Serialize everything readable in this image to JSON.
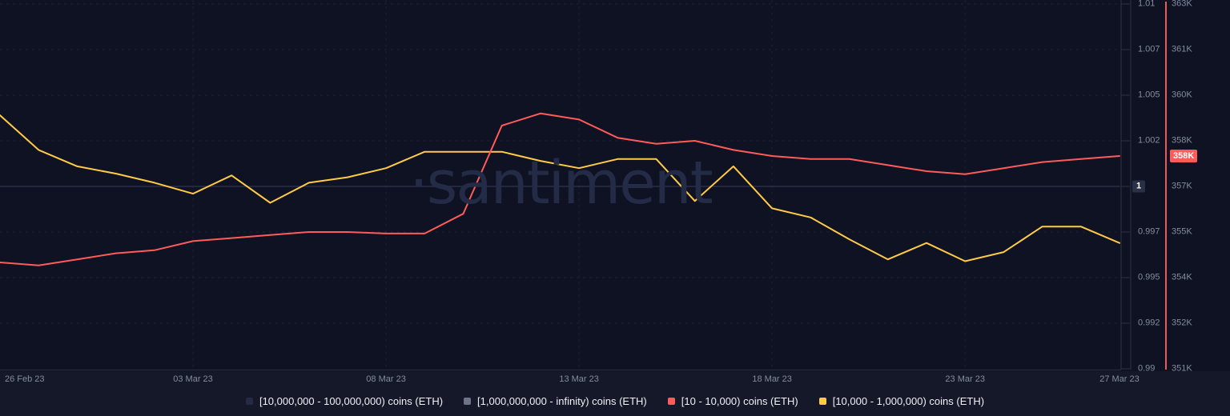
{
  "watermark": {
    "text": "·santiment"
  },
  "colors": {
    "background_plot": "#0f1222",
    "background_strip": "#141828",
    "red": "#ff5b5b",
    "yellow": "#ffcb47",
    "gray": "#7d859b",
    "dark": "#252b42",
    "grid": "rgba(148,163,199,0.10)",
    "axis_line": "#2c3246",
    "tick_text": "#848ca0",
    "badge_dark_bg": "#2a3046"
  },
  "y_axis_ratio": {
    "ticks": [
      "1.01",
      "1.007",
      "1.005",
      "1.002",
      "1",
      "0.997",
      "0.995",
      "0.992",
      "0.99"
    ],
    "min": 0.99,
    "max": 1.01,
    "highlighted_tick": "1"
  },
  "y_axis_coins": {
    "ticks": [
      "363K",
      "361K",
      "360K",
      "358K",
      "357K",
      "355K",
      "354K",
      "352K",
      "351K"
    ],
    "min": 351,
    "max": 363,
    "unit": "K",
    "axis_color": "#ff5b5b"
  },
  "x_axis": {
    "labels": [
      {
        "text": "26 Feb 23",
        "index": 0
      },
      {
        "text": "03 Mar 23",
        "index": 5
      },
      {
        "text": "08 Mar 23",
        "index": 10
      },
      {
        "text": "13 Mar 23",
        "index": 15
      },
      {
        "text": "18 Mar 23",
        "index": 20
      },
      {
        "text": "23 Mar 23",
        "index": 25
      },
      {
        "text": "27 Mar 23",
        "index": 29
      }
    ]
  },
  "badges": [
    {
      "text": "358K",
      "axis": "coins",
      "value": 358.0,
      "bg": "#ff5b5b",
      "fg": "#ffffff"
    }
  ],
  "legend": {
    "items": [
      {
        "label": "[10,000,000 - 100,000,000) coins (ETH)",
        "color": "#252b42"
      },
      {
        "label": "[1,000,000,000 - infinity) coins (ETH)",
        "color": "#6e7589"
      },
      {
        "label": "[10 - 10,000) coins (ETH)",
        "color": "#ff5b5b"
      },
      {
        "label": "[10,000 - 1,000,000) coins (ETH)",
        "color": "#ffcb47"
      }
    ]
  },
  "chart_data": {
    "type": "line",
    "title": "",
    "x": [
      "26 Feb 23",
      "27 Feb 23",
      "28 Feb 23",
      "01 Mar 23",
      "02 Mar 23",
      "03 Mar 23",
      "04 Mar 23",
      "05 Mar 23",
      "06 Mar 23",
      "07 Mar 23",
      "08 Mar 23",
      "09 Mar 23",
      "10 Mar 23",
      "11 Mar 23",
      "12 Mar 23",
      "13 Mar 23",
      "14 Mar 23",
      "15 Mar 23",
      "16 Mar 23",
      "17 Mar 23",
      "18 Mar 23",
      "19 Mar 23",
      "20 Mar 23",
      "21 Mar 23",
      "22 Mar 23",
      "23 Mar 23",
      "24 Mar 23",
      "25 Mar 23",
      "26 Mar 23",
      "27 Mar 23"
    ],
    "grid": "dashed",
    "legend_position": "bottom-center",
    "axes_note": "two right-side y-axes: ratio axis 0.99-1.01 and coins axis 351K-363K",
    "series": [
      {
        "name": "[10,000,000 - 100,000,000) coins (ETH)",
        "color": "#252b42",
        "axis": "ratio",
        "flat": true,
        "values_constant": 1.0,
        "note": "flat line at 1.0, nearly invisible (dark color)"
      },
      {
        "name": "[1,000,000,000 - infinity) coins (ETH)",
        "color": "#7d859b",
        "axis": "ratio",
        "flat": true,
        "values_constant": 1.0,
        "note": "faint gray flat line at 1.0"
      },
      {
        "name": "[10 - 10,000) coins (ETH)",
        "color": "#ff5b5b",
        "axis": "coins",
        "unit": "K",
        "last_value_label": "358K",
        "values": [
          354.5,
          354.4,
          354.6,
          354.8,
          354.9,
          355.2,
          355.3,
          355.4,
          355.5,
          355.5,
          355.45,
          355.45,
          356.1,
          359.0,
          359.4,
          359.2,
          358.6,
          358.4,
          358.5,
          358.2,
          358.0,
          357.9,
          357.9,
          357.7,
          357.5,
          357.4,
          357.6,
          357.8,
          357.9,
          358.0
        ]
      },
      {
        "name": "[10,000 - 1,000,000) coins (ETH)",
        "color": "#ffcb47",
        "axis": "ratio",
        "values": [
          1.0039,
          1.002,
          1.0011,
          1.0007,
          1.0002,
          0.9996,
          1.0006,
          0.9991,
          1.0002,
          1.0005,
          1.001,
          1.0019,
          1.0019,
          1.0019,
          1.0014,
          1.001,
          1.0015,
          1.0015,
          0.9992,
          1.0011,
          0.9988,
          0.9983,
          0.9971,
          0.996,
          0.9969,
          0.9959,
          0.9964,
          0.9978,
          0.9978,
          0.9969
        ]
      }
    ]
  }
}
